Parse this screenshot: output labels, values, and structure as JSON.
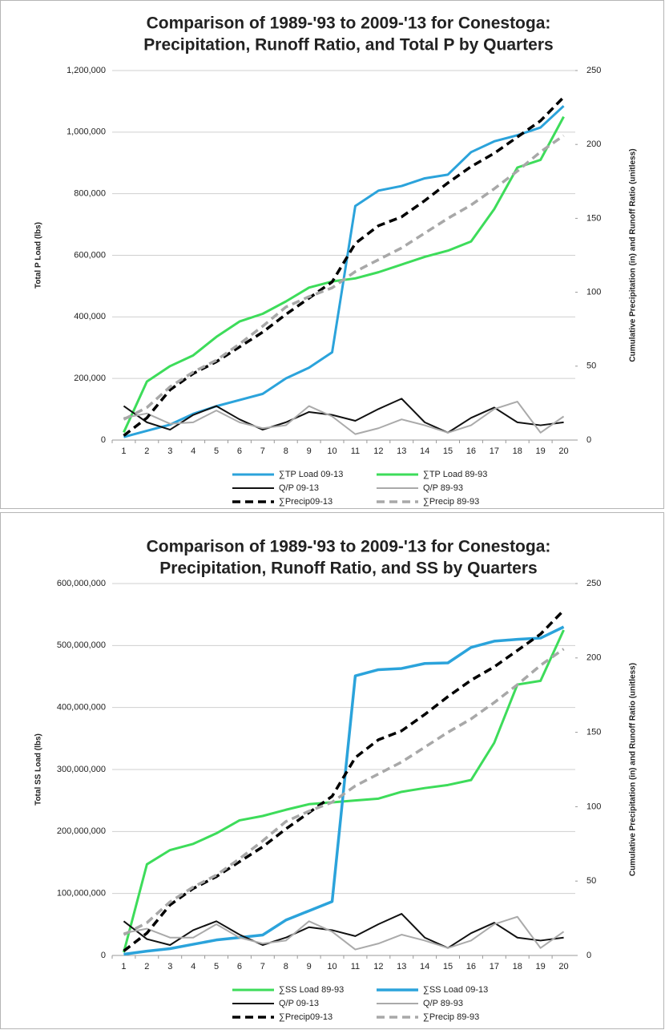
{
  "chart_data": [
    {
      "type": "line",
      "title": [
        "Comparison of 1989-'93 to 2009-'13 for Conestoga:",
        "Precipitation, Runoff Ratio, and Total P by Quarters"
      ],
      "ylabel": "Total P Load (lbs)",
      "y2label": "Cumulative Precipitation (in) and Runoff Ratio (unitless)",
      "categories": [
        "1",
        "2",
        "3",
        "4",
        "5",
        "6",
        "7",
        "8",
        "9",
        "10",
        "11",
        "12",
        "13",
        "14",
        "15",
        "16",
        "17",
        "18",
        "19",
        "20"
      ],
      "ylim": [
        0,
        1200000
      ],
      "yticks": [
        0,
        {
          "value": 200000,
          "label": "200,000"
        },
        {
          "value": 400000,
          "label": "400,000"
        },
        {
          "value": 600000,
          "label": "600,000"
        },
        {
          "value": 800000,
          "label": "800,000"
        },
        {
          "value": 1000000,
          "label": "1,000,000"
        },
        {
          "value": 1200000,
          "label": "1,200,000"
        }
      ],
      "y2lim": [
        0,
        250
      ],
      "y2ticks": [
        0,
        50,
        100,
        150,
        200,
        250
      ],
      "grid": true,
      "series": [
        {
          "name": "∑TP Load 09-13",
          "color": "#2ba3db",
          "width": 3,
          "style": "solid",
          "values": [
            10000,
            30000,
            50000,
            85000,
            110000,
            130000,
            150000,
            200000,
            235000,
            285000,
            760000,
            810000,
            825000,
            850000,
            862000,
            935000,
            970000,
            990000,
            1015000,
            1085000
          ]
        },
        {
          "name": "∑TP Load 89-93",
          "color": "#3ddc5a",
          "width": 3,
          "style": "solid",
          "values": [
            25000,
            190000,
            240000,
            275000,
            335000,
            385000,
            410000,
            450000,
            495000,
            515000,
            525000,
            545000,
            570000,
            595000,
            615000,
            645000,
            750000,
            885000,
            910000,
            1050000
          ]
        },
        {
          "name": "Q/P 09-13",
          "color": "#111111",
          "width": 2,
          "style": "solid",
          "axis": "y2",
          "values": [
            23,
            12,
            7,
            17,
            23,
            14,
            7,
            12,
            19,
            17,
            13,
            21,
            28,
            12,
            5,
            15,
            22,
            12,
            10,
            12
          ]
        },
        {
          "name": "Q/P 89-93",
          "color": "#aaaaaa",
          "width": 2,
          "style": "solid",
          "axis": "y2",
          "values": [
            15,
            18,
            11,
            12,
            20,
            12,
            8,
            10,
            23,
            16,
            4,
            8,
            14,
            10,
            5,
            10,
            21,
            26,
            5,
            16
          ]
        },
        {
          "name": "∑Precip09-13",
          "color": "#000000",
          "width": 3.5,
          "style": "dashed",
          "axis": "y2",
          "values": [
            3,
            15,
            34,
            45,
            53,
            63,
            73,
            85,
            96,
            107,
            133,
            145,
            151,
            162,
            174,
            185,
            194,
            205,
            216,
            232
          ]
        },
        {
          "name": "∑Precip 89-93",
          "color": "#a8a8a8",
          "width": 3.5,
          "style": "dashed",
          "axis": "y2",
          "values": [
            14,
            22,
            36,
            46,
            54,
            65,
            77,
            90,
            97,
            103,
            114,
            122,
            130,
            140,
            150,
            159,
            170,
            182,
            195,
            206
          ]
        }
      ]
    },
    {
      "type": "line",
      "title": [
        "Comparison of 1989-'93 to 2009-'13 for Conestoga:",
        "Precipitation, Runoff Ratio, and SS by Quarters"
      ],
      "ylabel": "Total SS Load (lbs)",
      "y2label": "Cumulative Precipitation (in) and Runoff Ratio (unitless)",
      "categories": [
        "1",
        "2",
        "3",
        "4",
        "5",
        "6",
        "7",
        "8",
        "9",
        "10",
        "11",
        "12",
        "13",
        "14",
        "15",
        "16",
        "17",
        "18",
        "19",
        "20"
      ],
      "ylim": [
        0,
        600000000
      ],
      "yticks": [
        0,
        {
          "value": 100000000,
          "label": "100,000,000"
        },
        {
          "value": 200000000,
          "label": "200,000,000"
        },
        {
          "value": 300000000,
          "label": "300,000,000"
        },
        {
          "value": 400000000,
          "label": "400,000,000"
        },
        {
          "value": 500000000,
          "label": "500,000,000"
        },
        {
          "value": 600000000,
          "label": "600,000,000"
        }
      ],
      "y2lim": [
        0,
        250
      ],
      "y2ticks": [
        0,
        50,
        100,
        150,
        200,
        250
      ],
      "grid": true,
      "series": [
        {
          "name": "∑SS Load 89-93",
          "color": "#3ddc5a",
          "width": 3,
          "style": "solid",
          "values": [
            5000000,
            147000000,
            170000000,
            180000000,
            197000000,
            218000000,
            225000000,
            235000000,
            244000000,
            247000000,
            250000000,
            253000000,
            264000000,
            270000000,
            275000000,
            283000000,
            343000000,
            437000000,
            443000000,
            525000000
          ]
        },
        {
          "name": "∑SS Load 09-13",
          "color": "#2ba3db",
          "width": 3.5,
          "style": "solid",
          "values": [
            2000000,
            7000000,
            11000000,
            18000000,
            25000000,
            29000000,
            33000000,
            57000000,
            72000000,
            87000000,
            451000000,
            461000000,
            463000000,
            471000000,
            472000000,
            497000000,
            507000000,
            510000000,
            512000000,
            530000000
          ]
        },
        {
          "name": "Q/P 09-13",
          "color": "#111111",
          "width": 2,
          "style": "solid",
          "axis": "y2",
          "values": [
            23,
            11,
            7,
            17,
            23,
            14,
            7,
            12,
            19,
            17,
            13,
            21,
            28,
            12,
            5,
            15,
            22,
            12,
            10,
            12
          ]
        },
        {
          "name": "Q/P 89-93",
          "color": "#aaaaaa",
          "width": 2,
          "style": "solid",
          "axis": "y2",
          "values": [
            15,
            18,
            12,
            12,
            21,
            12,
            8,
            10,
            23,
            16,
            4,
            8,
            14,
            10,
            5,
            10,
            21,
            26,
            5,
            16
          ]
        },
        {
          "name": "∑Precip09-13",
          "color": "#000000",
          "width": 3.5,
          "style": "dashed",
          "axis": "y2",
          "values": [
            3,
            15,
            34,
            45,
            53,
            63,
            73,
            85,
            96,
            107,
            133,
            145,
            151,
            162,
            174,
            185,
            194,
            205,
            216,
            232
          ]
        },
        {
          "name": "∑Precip 89-93",
          "color": "#a8a8a8",
          "width": 3.5,
          "style": "dashed",
          "axis": "y2",
          "values": [
            14,
            22,
            36,
            46,
            54,
            65,
            77,
            90,
            97,
            103,
            114,
            122,
            130,
            140,
            150,
            159,
            170,
            182,
            195,
            206
          ]
        }
      ]
    }
  ]
}
